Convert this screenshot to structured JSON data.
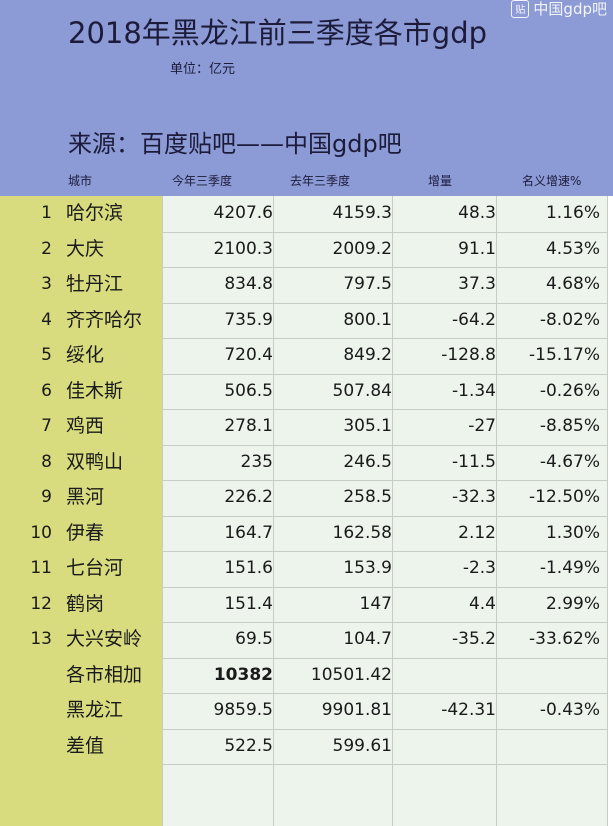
{
  "header": {
    "title": "2018年黑龙江前三季度各市gdp",
    "unit": "单位：亿元",
    "source": "来源：百度贴吧——中国gdp吧",
    "watermark": "中国gdp吧",
    "watermark_icon": "tieba-icon"
  },
  "columns": {
    "city": "城市",
    "this_year": "今年三季度",
    "last_year": "去年三季度",
    "increase": "增量",
    "growth": "名义增速%"
  },
  "rows": [
    {
      "rank": "1",
      "city": "哈尔滨",
      "this_year": "4207.6",
      "last_year": "4159.3",
      "increase": "48.3",
      "growth": "1.16%"
    },
    {
      "rank": "2",
      "city": "大庆",
      "this_year": "2100.3",
      "last_year": "2009.2",
      "increase": "91.1",
      "growth": "4.53%"
    },
    {
      "rank": "3",
      "city": "牡丹江",
      "this_year": "834.8",
      "last_year": "797.5",
      "increase": "37.3",
      "growth": "4.68%"
    },
    {
      "rank": "4",
      "city": "齐齐哈尔",
      "this_year": "735.9",
      "last_year": "800.1",
      "increase": "-64.2",
      "growth": "-8.02%"
    },
    {
      "rank": "5",
      "city": "绥化",
      "this_year": "720.4",
      "last_year": "849.2",
      "increase": "-128.8",
      "growth": "-15.17%"
    },
    {
      "rank": "6",
      "city": "佳木斯",
      "this_year": "506.5",
      "last_year": "507.84",
      "increase": "-1.34",
      "growth": "-0.26%"
    },
    {
      "rank": "7",
      "city": "鸡西",
      "this_year": "278.1",
      "last_year": "305.1",
      "increase": "-27",
      "growth": "-8.85%"
    },
    {
      "rank": "8",
      "city": "双鸭山",
      "this_year": "235",
      "last_year": "246.5",
      "increase": "-11.5",
      "growth": "-4.67%"
    },
    {
      "rank": "9",
      "city": "黑河",
      "this_year": "226.2",
      "last_year": "258.5",
      "increase": "-32.3",
      "growth": "-12.50%"
    },
    {
      "rank": "10",
      "city": "伊春",
      "this_year": "164.7",
      "last_year": "162.58",
      "increase": "2.12",
      "growth": "1.30%"
    },
    {
      "rank": "11",
      "city": "七台河",
      "this_year": "151.6",
      "last_year": "153.9",
      "increase": "-2.3",
      "growth": "-1.49%"
    },
    {
      "rank": "12",
      "city": "鹤岗",
      "this_year": "151.4",
      "last_year": "147",
      "increase": "4.4",
      "growth": "2.99%"
    },
    {
      "rank": "13",
      "city": "大兴安岭",
      "this_year": "69.5",
      "last_year": "104.7",
      "increase": "-35.2",
      "growth": "-33.62%"
    },
    {
      "rank": "",
      "city": "各市相加",
      "this_year": "10382",
      "last_year": "10501.42",
      "increase": "",
      "growth": ""
    },
    {
      "rank": "",
      "city": "黑龙江",
      "this_year": "9859.5",
      "last_year": "9901.81",
      "increase": "-42.31",
      "growth": "-0.43%"
    },
    {
      "rank": "",
      "city": "差值",
      "this_year": "522.5",
      "last_year": "599.61",
      "increase": "",
      "growth": ""
    }
  ]
}
